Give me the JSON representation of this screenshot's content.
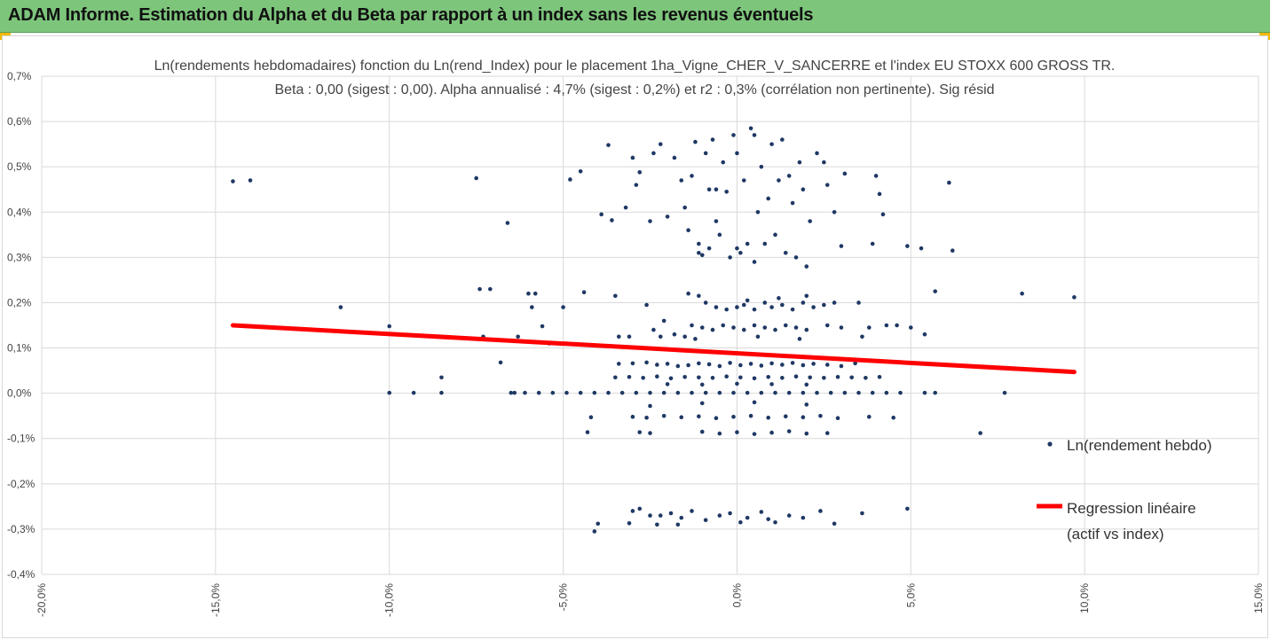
{
  "header": {
    "title": "ADAM Informe. Estimation du Alpha et du Beta par rapport à un index sans les revenus éventuels"
  },
  "colors": {
    "header_bg": "#7dc57b",
    "accent_corner": "#f2b800",
    "points": "#1f3864",
    "regression": "#ff0000",
    "grid": "#d9d9d9"
  },
  "chart_data": {
    "type": "scatter",
    "title_lines": [
      "Ln(rendements hebdomadaires) fonction du Ln(rend_Index) pour le placement 1ha_Vigne_CHER_V_SANCERRE et l'index EU STOXX 600 GROSS TR.",
      "Beta : 0,00 (sigest : 0,00). Alpha annualisé : 4,7% (sigest : 0,2%) et r2 : 0,3% (corrélation non pertinente). Sig résid"
    ],
    "xlabel": "",
    "ylabel": "",
    "xlim": [
      -20,
      15
    ],
    "ylim": [
      -0.4,
      0.7
    ],
    "grid": true,
    "x_ticks": [
      "-20,0%",
      "-15,0%",
      "-10,0%",
      "-5,0%",
      "0,0%",
      "5,0%",
      "10,0%",
      "15,0%"
    ],
    "y_ticks": [
      "0,7%",
      "0,6%",
      "0,5%",
      "0,4%",
      "0,3%",
      "0,2%",
      "0,1%",
      "0,0%",
      "-0,1%",
      "-0,2%",
      "-0,3%",
      "-0,4%"
    ],
    "legend_position": "right",
    "series": [
      {
        "name": "Ln(rendement hebdo)",
        "type": "scatter",
        "points": [
          [
            -14.5,
            0.468
          ],
          [
            -14.0,
            0.47
          ],
          [
            -11.4,
            0.19
          ],
          [
            -10.0,
            0.001
          ],
          [
            -10.0,
            0.148
          ],
          [
            -9.3,
            0.001
          ],
          [
            -8.5,
            0.035
          ],
          [
            -8.5,
            0.001
          ],
          [
            -7.5,
            0.475
          ],
          [
            -7.4,
            0.23
          ],
          [
            -7.1,
            0.23
          ],
          [
            -7.3,
            0.125
          ],
          [
            -6.6,
            0.376
          ],
          [
            -6.3,
            0.125
          ],
          [
            -6.4,
            0.001
          ],
          [
            -6.8,
            0.068
          ],
          [
            -6.0,
            0.22
          ],
          [
            -5.8,
            0.22
          ],
          [
            -5.9,
            0.19
          ],
          [
            -5.6,
            0.148
          ],
          [
            -5.4,
            0.11
          ],
          [
            -5.0,
            0.19
          ],
          [
            -4.8,
            0.472
          ],
          [
            -4.5,
            0.49
          ],
          [
            -4.4,
            0.223
          ],
          [
            -4.2,
            -0.053
          ],
          [
            -4.3,
            -0.086
          ],
          [
            -4.1,
            -0.305
          ],
          [
            -4.0,
            -0.288
          ],
          [
            -3.9,
            0.395
          ],
          [
            -3.7,
            0.548
          ],
          [
            -3.6,
            0.382
          ],
          [
            -3.5,
            0.215
          ],
          [
            -3.4,
            0.125
          ],
          [
            -3.2,
            0.41
          ],
          [
            -3.0,
            0.52
          ],
          [
            -2.9,
            0.46
          ],
          [
            -2.8,
            0.488
          ],
          [
            -3.1,
            -0.287
          ],
          [
            -3.0,
            -0.26
          ],
          [
            -2.8,
            -0.086
          ],
          [
            -2.6,
            0.195
          ],
          [
            -2.5,
            0.38
          ],
          [
            -2.4,
            0.53
          ],
          [
            -2.2,
            0.55
          ],
          [
            -2.0,
            0.39
          ],
          [
            -2.1,
            0.16
          ],
          [
            -2.5,
            -0.27
          ],
          [
            -2.3,
            -0.29
          ],
          [
            -1.9,
            -0.265
          ],
          [
            -1.7,
            -0.29
          ],
          [
            -1.6,
            -0.275
          ],
          [
            -1.8,
            0.52
          ],
          [
            -1.6,
            0.47
          ],
          [
            -1.5,
            0.41
          ],
          [
            -1.4,
            0.36
          ],
          [
            -1.3,
            0.48
          ],
          [
            -1.2,
            0.555
          ],
          [
            -1.1,
            0.33
          ],
          [
            -1.0,
            0.305
          ],
          [
            -0.9,
            0.53
          ],
          [
            -0.8,
            0.45
          ],
          [
            -0.7,
            0.56
          ],
          [
            -0.6,
            0.38
          ],
          [
            -0.5,
            0.35
          ],
          [
            -0.4,
            0.51
          ],
          [
            -0.3,
            0.445
          ],
          [
            -0.2,
            0.3
          ],
          [
            -0.1,
            0.57
          ],
          [
            0.0,
            0.53
          ],
          [
            0.1,
            0.31
          ],
          [
            0.2,
            0.47
          ],
          [
            0.3,
            0.33
          ],
          [
            0.4,
            0.585
          ],
          [
            0.5,
            0.57
          ],
          [
            0.6,
            0.4
          ],
          [
            0.7,
            0.5
          ],
          [
            0.8,
            0.33
          ],
          [
            0.9,
            0.43
          ],
          [
            1.0,
            0.55
          ],
          [
            1.1,
            0.35
          ],
          [
            1.2,
            0.47
          ],
          [
            1.3,
            0.56
          ],
          [
            1.4,
            0.31
          ],
          [
            1.5,
            0.48
          ],
          [
            1.6,
            0.42
          ],
          [
            1.7,
            0.3
          ],
          [
            1.8,
            0.51
          ],
          [
            1.9,
            0.45
          ],
          [
            2.0,
            0.28
          ],
          [
            2.1,
            0.38
          ],
          [
            2.3,
            0.53
          ],
          [
            2.5,
            0.51
          ],
          [
            2.6,
            0.46
          ],
          [
            2.8,
            0.4
          ],
          [
            3.0,
            0.325
          ],
          [
            3.1,
            0.485
          ],
          [
            3.5,
            0.2
          ],
          [
            3.9,
            0.33
          ],
          [
            4.0,
            0.48
          ],
          [
            4.1,
            0.44
          ],
          [
            4.2,
            0.395
          ],
          [
            4.3,
            0.15
          ],
          [
            4.6,
            0.15
          ],
          [
            4.9,
            0.325
          ],
          [
            5.0,
            0.145
          ],
          [
            5.3,
            0.32
          ],
          [
            5.4,
            0.13
          ],
          [
            5.7,
            0.225
          ],
          [
            6.1,
            0.465
          ],
          [
            6.2,
            0.315
          ],
          [
            8.2,
            0.22
          ],
          [
            9.7,
            0.212
          ],
          [
            7.0,
            -0.088
          ],
          [
            7.7,
            0.001
          ],
          [
            -1.1,
            0.31
          ],
          [
            -0.8,
            0.32
          ],
          [
            0.0,
            0.32
          ],
          [
            0.5,
            0.29
          ],
          [
            -0.6,
            0.45
          ],
          [
            -0.9,
            0.2
          ],
          [
            -0.6,
            0.19
          ],
          [
            -0.3,
            0.185
          ],
          [
            0.0,
            0.19
          ],
          [
            0.2,
            0.195
          ],
          [
            0.5,
            0.185
          ],
          [
            0.8,
            0.2
          ],
          [
            1.0,
            0.19
          ],
          [
            1.3,
            0.195
          ],
          [
            1.6,
            0.185
          ],
          [
            1.9,
            0.2
          ],
          [
            2.2,
            0.19
          ],
          [
            2.5,
            0.195
          ],
          [
            2.8,
            0.2
          ],
          [
            -1.4,
            0.22
          ],
          [
            -1.1,
            0.215
          ],
          [
            0.3,
            0.205
          ],
          [
            1.2,
            0.21
          ],
          [
            2.0,
            0.215
          ],
          [
            -1.3,
            0.15
          ],
          [
            -1.0,
            0.145
          ],
          [
            -0.7,
            0.14
          ],
          [
            -0.4,
            0.15
          ],
          [
            -0.1,
            0.145
          ],
          [
            0.2,
            0.14
          ],
          [
            0.5,
            0.15
          ],
          [
            0.8,
            0.145
          ],
          [
            1.1,
            0.14
          ],
          [
            1.4,
            0.15
          ],
          [
            1.7,
            0.145
          ],
          [
            2.0,
            0.14
          ],
          [
            2.6,
            0.15
          ],
          [
            3.0,
            0.145
          ],
          [
            -2.4,
            0.14
          ],
          [
            -1.8,
            0.13
          ],
          [
            -1.5,
            0.125
          ],
          [
            -2.2,
            0.125
          ],
          [
            -1.2,
            0.12
          ],
          [
            0.6,
            0.125
          ],
          [
            1.8,
            0.12
          ],
          [
            3.6,
            0.125
          ],
          [
            3.8,
            0.145
          ],
          [
            -3.1,
            0.125
          ],
          [
            -3.4,
            0.065
          ],
          [
            -3.0,
            0.066
          ],
          [
            -2.6,
            0.068
          ],
          [
            -2.3,
            0.063
          ],
          [
            -2.0,
            0.065
          ],
          [
            -1.7,
            0.06
          ],
          [
            -1.4,
            0.062
          ],
          [
            -1.1,
            0.066
          ],
          [
            -0.8,
            0.064
          ],
          [
            -0.5,
            0.06
          ],
          [
            -0.2,
            0.067
          ],
          [
            0.1,
            0.062
          ],
          [
            0.4,
            0.065
          ],
          [
            0.7,
            0.061
          ],
          [
            1.0,
            0.066
          ],
          [
            1.3,
            0.063
          ],
          [
            1.6,
            0.067
          ],
          [
            1.9,
            0.062
          ],
          [
            2.2,
            0.065
          ],
          [
            2.6,
            0.063
          ],
          [
            3.0,
            0.06
          ],
          [
            3.4,
            0.066
          ],
          [
            -3.5,
            0.035
          ],
          [
            -3.1,
            0.036
          ],
          [
            -2.7,
            0.034
          ],
          [
            -2.3,
            0.037
          ],
          [
            -1.9,
            0.033
          ],
          [
            -1.5,
            0.036
          ],
          [
            -1.1,
            0.035
          ],
          [
            -0.7,
            0.034
          ],
          [
            -0.3,
            0.037
          ],
          [
            0.1,
            0.035
          ],
          [
            0.5,
            0.033
          ],
          [
            0.9,
            0.036
          ],
          [
            1.3,
            0.034
          ],
          [
            1.7,
            0.037
          ],
          [
            2.1,
            0.035
          ],
          [
            2.5,
            0.034
          ],
          [
            2.9,
            0.036
          ],
          [
            3.3,
            0.035
          ],
          [
            3.7,
            0.034
          ],
          [
            4.1,
            0.036
          ],
          [
            -2.0,
            0.02
          ],
          [
            -1.0,
            0.019
          ],
          [
            0.0,
            0.021
          ],
          [
            1.0,
            0.02
          ],
          [
            2.0,
            0.019
          ],
          [
            -6.5,
            0.001
          ],
          [
            -6.1,
            0.001
          ],
          [
            -5.7,
            0.001
          ],
          [
            -5.3,
            0.001
          ],
          [
            -4.9,
            0.001
          ],
          [
            -4.5,
            0.001
          ],
          [
            -4.1,
            0.001
          ],
          [
            -3.7,
            0.001
          ],
          [
            -3.3,
            0.001
          ],
          [
            -2.9,
            0.001
          ],
          [
            -2.5,
            0.001
          ],
          [
            -2.1,
            0.001
          ],
          [
            -1.7,
            0.001
          ],
          [
            -1.3,
            0.001
          ],
          [
            -0.9,
            0.001
          ],
          [
            -0.5,
            0.001
          ],
          [
            -0.1,
            0.001
          ],
          [
            0.3,
            0.001
          ],
          [
            0.7,
            0.001
          ],
          [
            1.1,
            0.001
          ],
          [
            1.5,
            0.001
          ],
          [
            1.9,
            0.001
          ],
          [
            2.3,
            0.001
          ],
          [
            2.7,
            0.001
          ],
          [
            3.1,
            0.001
          ],
          [
            3.5,
            0.001
          ],
          [
            3.9,
            0.001
          ],
          [
            4.3,
            0.001
          ],
          [
            4.7,
            0.001
          ],
          [
            5.4,
            0.001
          ],
          [
            5.7,
            0.001
          ],
          [
            -2.5,
            -0.028
          ],
          [
            -1.0,
            -0.022
          ],
          [
            0.5,
            -0.02
          ],
          [
            2.0,
            -0.025
          ],
          [
            -3.0,
            -0.052
          ],
          [
            -2.6,
            -0.054
          ],
          [
            -2.1,
            -0.05
          ],
          [
            -1.6,
            -0.053
          ],
          [
            -1.1,
            -0.051
          ],
          [
            -0.6,
            -0.055
          ],
          [
            -0.1,
            -0.052
          ],
          [
            0.4,
            -0.05
          ],
          [
            0.9,
            -0.054
          ],
          [
            1.4,
            -0.051
          ],
          [
            1.9,
            -0.053
          ],
          [
            2.4,
            -0.05
          ],
          [
            2.9,
            -0.055
          ],
          [
            3.8,
            -0.052
          ],
          [
            4.5,
            -0.054
          ],
          [
            -2.5,
            -0.088
          ],
          [
            -1.0,
            -0.085
          ],
          [
            -0.5,
            -0.089
          ],
          [
            0.0,
            -0.086
          ],
          [
            0.5,
            -0.09
          ],
          [
            1.0,
            -0.087
          ],
          [
            1.5,
            -0.084
          ],
          [
            2.0,
            -0.089
          ],
          [
            2.6,
            -0.088
          ],
          [
            -2.2,
            -0.27
          ],
          [
            -1.3,
            -0.26
          ],
          [
            -0.9,
            -0.28
          ],
          [
            -0.5,
            -0.27
          ],
          [
            -0.2,
            -0.265
          ],
          [
            0.3,
            -0.275
          ],
          [
            0.7,
            -0.262
          ],
          [
            1.1,
            -0.285
          ],
          [
            1.5,
            -0.27
          ],
          [
            1.9,
            -0.275
          ],
          [
            2.4,
            -0.26
          ],
          [
            2.8,
            -0.288
          ],
          [
            3.6,
            -0.265
          ],
          [
            4.9,
            -0.255
          ],
          [
            -2.8,
            -0.255
          ],
          [
            0.1,
            -0.285
          ],
          [
            0.9,
            -0.278
          ]
        ]
      },
      {
        "name": "Regression linéaire (actif vs index)",
        "legend_lines": [
          "Regression linéaire",
          "(actif vs index)"
        ],
        "type": "line",
        "x": [
          -14.5,
          9.7
        ],
        "y": [
          0.15,
          0.047
        ]
      }
    ]
  }
}
